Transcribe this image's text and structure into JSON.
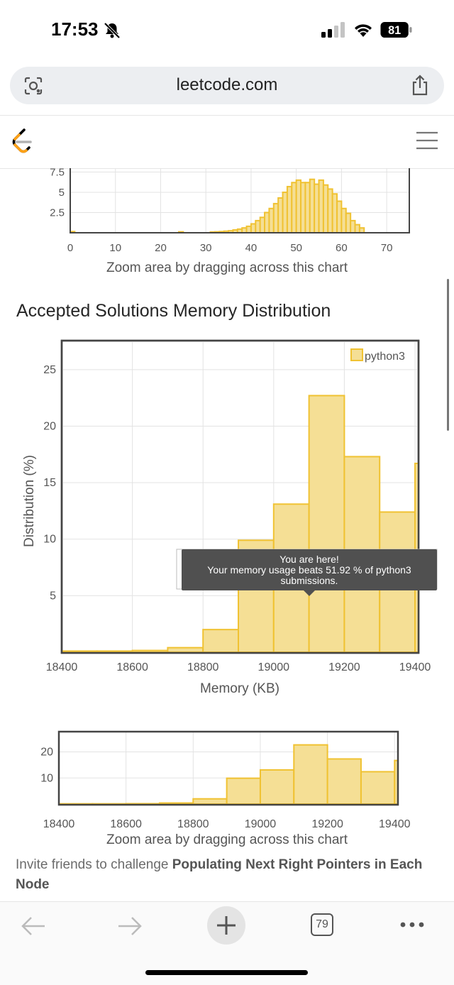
{
  "status_bar": {
    "time": "17:53",
    "battery": "81",
    "icons": [
      "bell-slash-icon",
      "cellular-signal-icon",
      "wifi-icon",
      "battery-icon"
    ]
  },
  "browser": {
    "url": "leetcode.com",
    "icons": [
      "lens-icon",
      "share-icon"
    ]
  },
  "site_header": {
    "icons": [
      "leetcode-logo",
      "hamburger-menu-icon"
    ]
  },
  "runtime_zoom_chart": {
    "caption": "Zoom area by dragging across this chart",
    "y_ticks": [
      "7.5",
      "5.0",
      "2.5"
    ],
    "x_ticks": [
      "0",
      "10",
      "20",
      "30",
      "40",
      "50",
      "60",
      "70"
    ]
  },
  "memory_section": {
    "title": "Accepted Solutions Memory Distribution"
  },
  "chart_data": [
    {
      "type": "bar",
      "xlabel": "",
      "ylabel": "",
      "xlim": [
        0,
        75
      ],
      "ylim": [
        0,
        8.5
      ],
      "x_ticks": [
        0,
        10,
        20,
        30,
        40,
        50,
        60,
        70
      ],
      "y_ticks": [
        2.5,
        5.0,
        7.5
      ],
      "bin_width": 1,
      "x": [
        0,
        24,
        31,
        32,
        33,
        34,
        35,
        36,
        37,
        38,
        39,
        40,
        41,
        42,
        43,
        44,
        45,
        46,
        47,
        48,
        49,
        50,
        51,
        52,
        53,
        54,
        55,
        56,
        57,
        58,
        59,
        60,
        61,
        62,
        63,
        64
      ],
      "values": [
        0.15,
        0.12,
        0.1,
        0.12,
        0.15,
        0.2,
        0.25,
        0.35,
        0.45,
        0.6,
        0.8,
        1.1,
        1.5,
        1.9,
        2.5,
        3.0,
        3.6,
        4.3,
        5.0,
        5.7,
        6.2,
        6.5,
        6.2,
        6.2,
        6.6,
        6.0,
        6.5,
        5.9,
        5.4,
        4.8,
        3.9,
        3.0,
        2.4,
        1.5,
        1.0,
        0.6
      ],
      "caption": "Zoom area by dragging across this chart",
      "grid": true,
      "colors": {
        "fill": "#f5df95",
        "stroke": "#f0c232"
      }
    },
    {
      "type": "bar",
      "title": "Accepted Solutions Memory Distribution",
      "xlabel": "Memory (KB)",
      "ylabel": "Distribution (%)",
      "xlim": [
        18400,
        19410
      ],
      "ylim": [
        0,
        27.5
      ],
      "x_ticks": [
        18400,
        18600,
        18800,
        19000,
        19200,
        19400
      ],
      "y_ticks": [
        5,
        10,
        15,
        20,
        25
      ],
      "bin_width": 100,
      "x": [
        18400,
        18500,
        18600,
        18700,
        18800,
        18900,
        19000,
        19100,
        19200,
        19300,
        19400
      ],
      "values": [
        0.1,
        0.1,
        0.15,
        0.4,
        2.0,
        9.9,
        13.1,
        22.7,
        17.3,
        12.4,
        16.7
      ],
      "series": [
        {
          "name": "python3",
          "color": "#f5df95",
          "stroke": "#f0c232"
        }
      ],
      "legend": "top-right",
      "grid": true,
      "tooltip": {
        "line1": "You are here!",
        "line2": "Your memory usage beats 51.92 % of python3",
        "line3": "submissions."
      }
    },
    {
      "type": "bar",
      "xlabel": "",
      "ylabel": "",
      "xlim": [
        18400,
        19410
      ],
      "ylim": [
        0,
        27.5
      ],
      "x_ticks": [
        18400,
        18600,
        18800,
        19000,
        19200,
        19400
      ],
      "y_ticks": [
        10,
        20
      ],
      "bin_width": 100,
      "x": [
        18400,
        18500,
        18600,
        18700,
        18800,
        18900,
        19000,
        19100,
        19200,
        19300,
        19400
      ],
      "values": [
        0.1,
        0.1,
        0.15,
        0.4,
        2.0,
        9.9,
        13.1,
        22.7,
        17.3,
        12.4,
        16.7
      ],
      "caption": "Zoom area by dragging across this chart",
      "grid": true
    }
  ],
  "invite": {
    "prefix": "Invite friends to challenge ",
    "problem": "Populating Next Right Pointers in Each Node"
  },
  "toolbar": {
    "tab_count": "79",
    "icons": [
      "back-arrow-icon",
      "forward-arrow-icon",
      "new-tab-plus-icon",
      "tabs-count-icon",
      "more-dots-icon"
    ]
  }
}
